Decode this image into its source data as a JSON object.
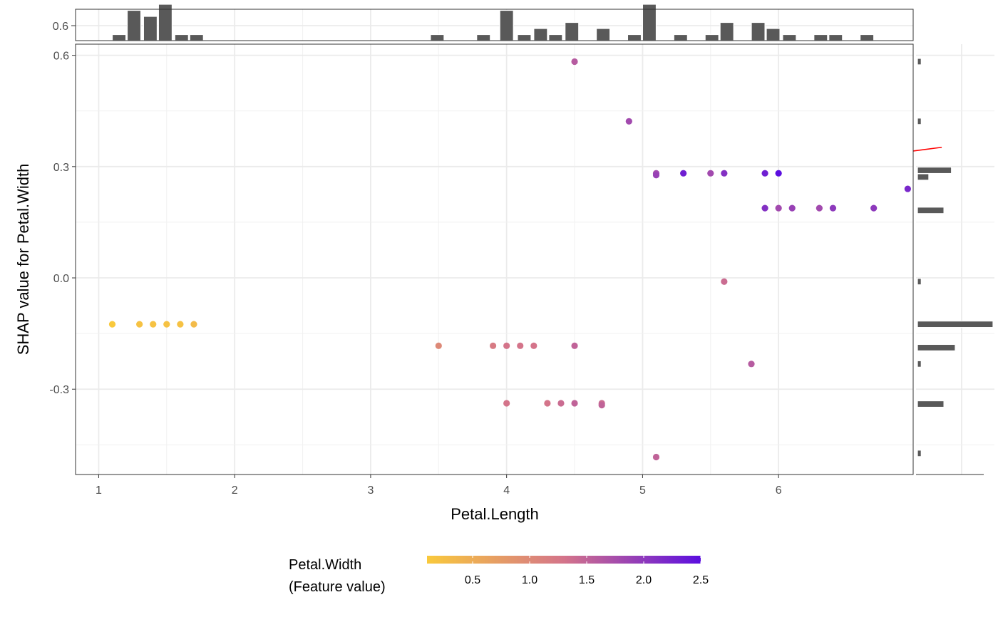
{
  "chart_data": {
    "type": "scatter",
    "xlabel": "Petal.Length",
    "ylabel": "SHAP value for Petal.Width",
    "xlim": [
      0.83,
      6.99
    ],
    "ylim": [
      -0.53,
      0.63
    ],
    "x_ticks": [
      1,
      2,
      3,
      4,
      5,
      6
    ],
    "x_tick_labels": [
      "1",
      "2",
      "3",
      "4",
      "5",
      "6"
    ],
    "y_ticks": [
      0.6,
      0.3,
      0.0,
      -0.3
    ],
    "y_tick_labels": [
      "0.6",
      "0.3",
      "0.0",
      "-0.3"
    ],
    "grid": true,
    "color_legend": {
      "title_line1": "Petal.Width",
      "title_line2": "(Feature value)",
      "range": [
        0.1,
        2.5
      ],
      "ticks": [
        0.5,
        1.0,
        1.5,
        2.0,
        2.5
      ],
      "tick_labels": [
        "0.5",
        "1.0",
        "1.5",
        "2.0",
        "2.5"
      ],
      "low_color": "#f9c93c",
      "mid_color": "#d4748a",
      "high_color": "#5b0ee0",
      "position": "bottom"
    },
    "points": [
      {
        "x": 1.1,
        "y": -0.125,
        "c": 0.1
      },
      {
        "x": 1.3,
        "y": -0.125,
        "c": 0.2
      },
      {
        "x": 1.4,
        "y": -0.125,
        "c": 0.2
      },
      {
        "x": 1.5,
        "y": -0.125,
        "c": 0.2
      },
      {
        "x": 1.6,
        "y": -0.125,
        "c": 0.2
      },
      {
        "x": 1.7,
        "y": -0.125,
        "c": 0.3
      },
      {
        "x": 3.5,
        "y": -0.183,
        "c": 1.0
      },
      {
        "x": 3.9,
        "y": -0.183,
        "c": 1.2
      },
      {
        "x": 4.0,
        "y": -0.183,
        "c": 1.3
      },
      {
        "x": 4.1,
        "y": -0.183,
        "c": 1.3
      },
      {
        "x": 4.2,
        "y": -0.183,
        "c": 1.3
      },
      {
        "x": 4.5,
        "y": -0.183,
        "c": 1.5
      },
      {
        "x": 4.0,
        "y": -0.338,
        "c": 1.3
      },
      {
        "x": 4.3,
        "y": -0.338,
        "c": 1.3
      },
      {
        "x": 4.4,
        "y": -0.338,
        "c": 1.4
      },
      {
        "x": 4.5,
        "y": -0.338,
        "c": 1.5
      },
      {
        "x": 4.7,
        "y": -0.338,
        "c": 1.4
      },
      {
        "x": 4.7,
        "y": -0.343,
        "c": 1.5
      },
      {
        "x": 4.5,
        "y": 0.583,
        "c": 1.6
      },
      {
        "x": 4.9,
        "y": 0.422,
        "c": 1.8
      },
      {
        "x": 5.1,
        "y": 0.282,
        "c": 1.8
      },
      {
        "x": 5.1,
        "y": 0.277,
        "c": 1.9
      },
      {
        "x": 5.3,
        "y": 0.282,
        "c": 2.3
      },
      {
        "x": 5.5,
        "y": 0.282,
        "c": 1.8
      },
      {
        "x": 5.6,
        "y": 0.282,
        "c": 2.1
      },
      {
        "x": 5.9,
        "y": 0.282,
        "c": 2.3
      },
      {
        "x": 6.0,
        "y": 0.282,
        "c": 2.5
      },
      {
        "x": 5.9,
        "y": 0.188,
        "c": 2.1
      },
      {
        "x": 6.0,
        "y": 0.188,
        "c": 1.8
      },
      {
        "x": 6.1,
        "y": 0.188,
        "c": 1.9
      },
      {
        "x": 6.3,
        "y": 0.188,
        "c": 1.8
      },
      {
        "x": 6.4,
        "y": 0.188,
        "c": 2.0
      },
      {
        "x": 6.7,
        "y": 0.188,
        "c": 2.0
      },
      {
        "x": 6.95,
        "y": 0.24,
        "c": 2.2
      },
      {
        "x": 5.6,
        "y": -0.01,
        "c": 1.4
      },
      {
        "x": 5.8,
        "y": -0.232,
        "c": 1.6
      },
      {
        "x": 5.1,
        "y": -0.483,
        "c": 1.5
      }
    ],
    "top_histogram": {
      "bins": [
        {
          "x": 1.15,
          "count": 1
        },
        {
          "x": 1.26,
          "count": 5
        },
        {
          "x": 1.38,
          "count": 4
        },
        {
          "x": 1.49,
          "count": 6
        },
        {
          "x": 1.61,
          "count": 1
        },
        {
          "x": 1.72,
          "count": 1
        },
        {
          "x": 3.49,
          "count": 1
        },
        {
          "x": 3.83,
          "count": 1
        },
        {
          "x": 4.0,
          "count": 5
        },
        {
          "x": 4.13,
          "count": 1
        },
        {
          "x": 4.25,
          "count": 2
        },
        {
          "x": 4.36,
          "count": 1
        },
        {
          "x": 4.48,
          "count": 3
        },
        {
          "x": 4.71,
          "count": 2
        },
        {
          "x": 4.94,
          "count": 1
        },
        {
          "x": 5.05,
          "count": 6
        },
        {
          "x": 5.28,
          "count": 1
        },
        {
          "x": 5.51,
          "count": 1
        },
        {
          "x": 5.62,
          "count": 3
        },
        {
          "x": 5.85,
          "count": 3
        },
        {
          "x": 5.96,
          "count": 2
        },
        {
          "x": 6.08,
          "count": 1
        },
        {
          "x": 6.31,
          "count": 1
        },
        {
          "x": 6.42,
          "count": 1
        },
        {
          "x": 6.65,
          "count": 1
        }
      ]
    },
    "right_histogram": {
      "bins": [
        {
          "y": 0.583,
          "count": 1
        },
        {
          "y": 0.422,
          "count": 1
        },
        {
          "y": 0.29,
          "count": 9
        },
        {
          "y": 0.272,
          "count": 3
        },
        {
          "y": 0.182,
          "count": 7
        },
        {
          "y": -0.01,
          "count": 1
        },
        {
          "y": -0.125,
          "count": 20
        },
        {
          "y": -0.188,
          "count": 10
        },
        {
          "y": -0.232,
          "count": 1
        },
        {
          "y": -0.34,
          "count": 7
        },
        {
          "y": -0.473,
          "count": 1
        }
      ]
    },
    "trend_line": {
      "color": "#ff0000",
      "points": [
        [
          6.99,
          0.342
        ],
        [
          7.2,
          0.352
        ]
      ]
    }
  }
}
